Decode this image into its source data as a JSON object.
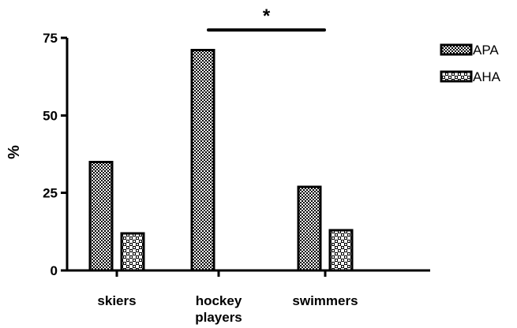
{
  "chart_data": {
    "type": "bar",
    "categories": [
      "skiers",
      "hockey\nplayers",
      "swimmers"
    ],
    "category_lines": [
      [
        "skiers"
      ],
      [
        "hockey",
        "players"
      ],
      [
        "swimmers"
      ]
    ],
    "series": [
      {
        "name": "APA",
        "values": [
          35,
          71,
          27
        ],
        "pattern": "checker-dense"
      },
      {
        "name": "AHA",
        "values": [
          12,
          0,
          13
        ],
        "pattern": "checker-open"
      }
    ],
    "title": "",
    "xlabel": "",
    "ylabel": "%",
    "ylim": [
      0,
      75
    ],
    "yticks": [
      0,
      25,
      50,
      75
    ],
    "grid": false,
    "legend": "top-right",
    "annotations": [
      {
        "text": "*",
        "between_categories": [
          1,
          2
        ]
      }
    ],
    "colors": {
      "axis": "#000000",
      "bar_dark": "#000000",
      "bar_light": "#ffffff"
    }
  }
}
